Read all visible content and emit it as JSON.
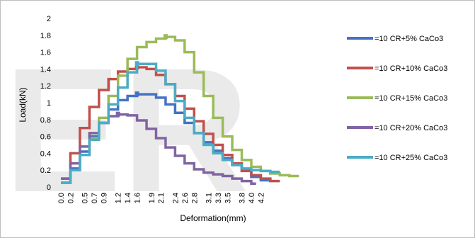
{
  "chart_data": {
    "type": "line",
    "title": "",
    "xlabel": "Deformation(mm)",
    "ylabel": "Load(kN)",
    "xlim": [
      0,
      5.8
    ],
    "ylim": [
      0,
      2
    ],
    "y_ticks": [
      "0",
      "0.2",
      "0.4",
      "0.6",
      "0.8",
      "1",
      "1.2",
      "1.4",
      "1.6",
      "1.8",
      "2"
    ],
    "x_ticks": [
      {
        "value": 0.0,
        "label": "0.0"
      },
      {
        "value": 0.2,
        "label": "0.2"
      },
      {
        "value": 0.5,
        "label": "0.5"
      },
      {
        "value": 0.7,
        "label": "0.7"
      },
      {
        "value": 0.9,
        "label": "0.9"
      },
      {
        "value": 1.2,
        "label": "1.2"
      },
      {
        "value": 1.4,
        "label": "1.4"
      },
      {
        "value": 1.6,
        "label": "1.6"
      },
      {
        "value": 1.9,
        "label": "1.9"
      },
      {
        "value": 2.1,
        "label": "2.1"
      },
      {
        "value": 2.4,
        "label": "2.4"
      },
      {
        "value": 2.6,
        "label": "2.6"
      },
      {
        "value": 2.8,
        "label": "2.8"
      },
      {
        "value": 3.1,
        "label": "3.1"
      },
      {
        "value": 3.3,
        "label": "3.3"
      },
      {
        "value": 3.5,
        "label": "3.5"
      },
      {
        "value": 3.8,
        "label": "3.8"
      },
      {
        "value": 4.0,
        "label": "4.0"
      },
      {
        "value": 4.2,
        "label": "4.2"
      }
    ],
    "grid": false,
    "legend": "right",
    "series": [
      {
        "name": "=10 CR+5% CaCo3",
        "color": "#4472c4",
        "x": [
          0.0,
          0.2,
          0.4,
          0.6,
          0.8,
          1.0,
          1.2,
          1.4,
          1.6,
          1.8,
          2.0,
          2.2,
          2.4,
          2.6,
          2.8,
          3.0,
          3.2,
          3.4,
          3.6,
          3.8,
          4.0,
          4.2,
          4.4
        ],
        "y": [
          0.05,
          0.22,
          0.42,
          0.6,
          0.76,
          0.92,
          1.03,
          1.08,
          1.1,
          1.1,
          1.06,
          0.98,
          0.88,
          0.76,
          0.64,
          0.53,
          0.43,
          0.34,
          0.26,
          0.19,
          0.12,
          0.08,
          0.07
        ]
      },
      {
        "name": "=10 CR+10% CaCo3",
        "color": "#c0504d",
        "x": [
          0.0,
          0.2,
          0.4,
          0.6,
          0.8,
          1.0,
          1.2,
          1.4,
          1.6,
          1.8,
          2.0,
          2.2,
          2.4,
          2.6,
          2.8,
          3.0,
          3.2,
          3.4,
          3.6,
          3.8,
          4.0,
          4.2,
          4.4,
          4.6
        ],
        "y": [
          0.1,
          0.4,
          0.7,
          0.95,
          1.15,
          1.28,
          1.37,
          1.4,
          1.42,
          1.4,
          1.33,
          1.22,
          1.08,
          0.93,
          0.78,
          0.63,
          0.5,
          0.38,
          0.28,
          0.2,
          0.14,
          0.1,
          0.07,
          0.07
        ]
      },
      {
        "name": "=10 CR+15% CaCo3",
        "color": "#9bbb59",
        "x": [
          0.0,
          0.2,
          0.4,
          0.6,
          0.8,
          1.0,
          1.2,
          1.4,
          1.6,
          1.8,
          2.0,
          2.2,
          2.4,
          2.6,
          2.8,
          3.0,
          3.2,
          3.4,
          3.6,
          3.8,
          4.0,
          4.2,
          4.4,
          4.6,
          4.8,
          5.0
        ],
        "y": [
          0.05,
          0.2,
          0.38,
          0.58,
          0.82,
          1.08,
          1.32,
          1.52,
          1.66,
          1.72,
          1.76,
          1.78,
          1.74,
          1.6,
          1.36,
          1.08,
          0.82,
          0.6,
          0.44,
          0.32,
          0.24,
          0.19,
          0.16,
          0.14,
          0.13,
          0.13
        ]
      },
      {
        "name": "=10 CR+20% CaCo3",
        "color": "#8064a2",
        "x": [
          0.0,
          0.2,
          0.4,
          0.6,
          0.8,
          1.0,
          1.2,
          1.4,
          1.6,
          1.8,
          2.0,
          2.2,
          2.4,
          2.6,
          2.8,
          3.0,
          3.2,
          3.4,
          3.6,
          3.8,
          4.0,
          4.1
        ],
        "y": [
          0.1,
          0.28,
          0.48,
          0.64,
          0.76,
          0.84,
          0.86,
          0.85,
          0.79,
          0.69,
          0.58,
          0.47,
          0.37,
          0.28,
          0.21,
          0.17,
          0.15,
          0.13,
          0.1,
          0.07,
          0.04,
          0.04
        ]
      },
      {
        "name": "=10 CR+25% CaCo3",
        "color": "#4bacc6",
        "x": [
          0.0,
          0.2,
          0.4,
          0.6,
          0.8,
          1.0,
          1.2,
          1.4,
          1.6,
          1.8,
          2.0,
          2.2,
          2.4,
          2.6,
          2.8,
          3.0,
          3.2,
          3.4,
          3.6,
          3.8,
          4.0,
          4.2,
          4.4,
          4.6
        ],
        "y": [
          0.05,
          0.2,
          0.38,
          0.56,
          0.76,
          0.98,
          1.18,
          1.36,
          1.46,
          1.46,
          1.38,
          1.22,
          1.02,
          0.82,
          0.64,
          0.5,
          0.4,
          0.32,
          0.26,
          0.22,
          0.2,
          0.19,
          0.18,
          0.18
        ]
      }
    ]
  },
  "watermark": {
    "text": "ER",
    "color": "#d9d9d9"
  }
}
